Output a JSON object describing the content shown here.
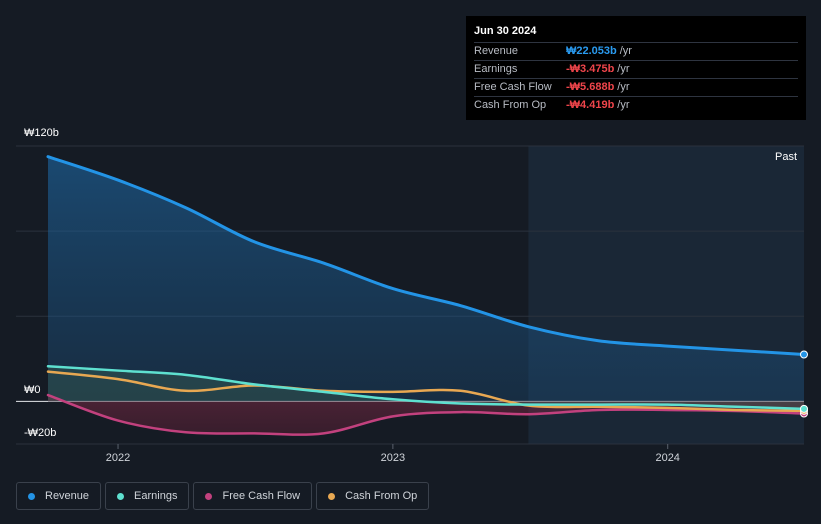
{
  "tooltip": {
    "date": "Jun 30 2024",
    "rows": [
      {
        "label": "Revenue",
        "value": "₩22.053b",
        "unit": "/yr",
        "color": "#2a9bf0"
      },
      {
        "label": "Earnings",
        "value": "-₩3.475b",
        "unit": "/yr",
        "color": "#f0454b"
      },
      {
        "label": "Free Cash Flow",
        "value": "-₩5.688b",
        "unit": "/yr",
        "color": "#f0454b"
      },
      {
        "label": "Cash From Op",
        "value": "-₩4.419b",
        "unit": "/yr",
        "color": "#f0454b"
      }
    ]
  },
  "past_label": "Past",
  "legend": [
    {
      "label": "Revenue",
      "color": "#2394e6"
    },
    {
      "label": "Earnings",
      "color": "#5ee0d0"
    },
    {
      "label": "Free Cash Flow",
      "color": "#c2417e"
    },
    {
      "label": "Cash From Op",
      "color": "#e8a852"
    }
  ],
  "chart_data": {
    "type": "line",
    "y_unit": "₩b",
    "ylim": [
      -20,
      120
    ],
    "yticks": [
      {
        "value": 120,
        "label": "₩120b"
      },
      {
        "value": 0,
        "label": "₩0"
      },
      {
        "value": -20,
        "label": "-₩20b"
      }
    ],
    "xlim": [
      "2021-09-30",
      "2024-06-30"
    ],
    "xticks": [
      {
        "date": "2022-01-01",
        "label": "2022"
      },
      {
        "date": "2023-01-01",
        "label": "2023"
      },
      {
        "date": "2024-01-01",
        "label": "2024"
      }
    ],
    "past_region_start": "2023-06-30",
    "grid": true,
    "legend_position": "bottom",
    "series": [
      {
        "name": "Revenue",
        "color": "#2394e6",
        "fill": true,
        "points": [
          [
            "2021-09-30",
            115
          ],
          [
            "2022-01-01",
            104
          ],
          [
            "2022-04-01",
            91
          ],
          [
            "2022-07-01",
            75
          ],
          [
            "2022-10-01",
            65
          ],
          [
            "2023-01-01",
            53
          ],
          [
            "2023-04-01",
            45
          ],
          [
            "2023-07-01",
            35
          ],
          [
            "2023-10-01",
            28.5
          ],
          [
            "2024-01-01",
            26
          ],
          [
            "2024-04-01",
            24
          ],
          [
            "2024-06-30",
            22.053
          ]
        ]
      },
      {
        "name": "Earnings",
        "color": "#5ee0d0",
        "fill": false,
        "points": [
          [
            "2021-09-30",
            16.5
          ],
          [
            "2022-01-01",
            14.5
          ],
          [
            "2022-04-01",
            12.5
          ],
          [
            "2022-07-01",
            8
          ],
          [
            "2022-10-01",
            4.5
          ],
          [
            "2023-01-01",
            1
          ],
          [
            "2023-04-01",
            -1
          ],
          [
            "2023-07-01",
            -1.5
          ],
          [
            "2023-10-01",
            -1.5
          ],
          [
            "2024-01-01",
            -1.5
          ],
          [
            "2024-04-01",
            -2.5
          ],
          [
            "2024-06-30",
            -3.475
          ]
        ]
      },
      {
        "name": "Free Cash Flow",
        "color": "#c2417e",
        "fill": true,
        "points": [
          [
            "2021-09-30",
            3
          ],
          [
            "2022-01-01",
            -9
          ],
          [
            "2022-04-01",
            -14.5
          ],
          [
            "2022-07-01",
            -15
          ],
          [
            "2022-10-01",
            -15
          ],
          [
            "2023-01-01",
            -7
          ],
          [
            "2023-04-01",
            -5
          ],
          [
            "2023-07-01",
            -6
          ],
          [
            "2023-10-01",
            -4
          ],
          [
            "2024-01-01",
            -4
          ],
          [
            "2024-04-01",
            -4.5
          ],
          [
            "2024-06-30",
            -5.688
          ]
        ]
      },
      {
        "name": "Cash From Op",
        "color": "#e8a852",
        "fill": false,
        "points": [
          [
            "2021-09-30",
            14
          ],
          [
            "2022-01-01",
            10.5
          ],
          [
            "2022-04-01",
            5
          ],
          [
            "2022-07-01",
            7.5
          ],
          [
            "2022-10-01",
            5
          ],
          [
            "2023-01-01",
            4.5
          ],
          [
            "2023-04-01",
            5
          ],
          [
            "2023-07-01",
            -2
          ],
          [
            "2023-10-01",
            -2.5
          ],
          [
            "2024-01-01",
            -3
          ],
          [
            "2024-04-01",
            -4
          ],
          [
            "2024-06-30",
            -4.419
          ]
        ]
      }
    ]
  }
}
